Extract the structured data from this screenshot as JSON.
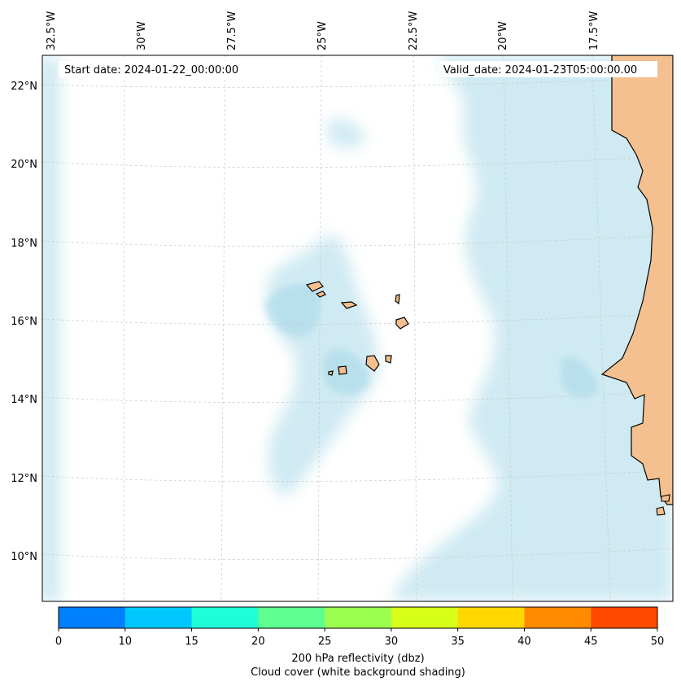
{
  "map": {
    "start_date": "Start date: 2024-01-22_00:00:00",
    "valid_date": "Valid_date: 2024-01-23T05:00:00.00",
    "lon_labels": [
      "32.5°W",
      "30°W",
      "27.5°W",
      "25°W",
      "22.5°W",
      "20°W",
      "17.5°W"
    ],
    "lat_labels": [
      "22°N",
      "20°N",
      "18°N",
      "16°N",
      "14°N",
      "12°N",
      "10°N"
    ],
    "colors": {
      "land": "#f4c08f",
      "cloud": "#a9d9e8",
      "coast": "#000000"
    }
  },
  "colorbar": {
    "ticks": [
      "0",
      "10",
      "15",
      "20",
      "25",
      "30",
      "35",
      "40",
      "45",
      "50"
    ],
    "colors": [
      "#0080ff",
      "#00c8ff",
      "#1effd8",
      "#5cff90",
      "#9cff50",
      "#d8ff1a",
      "#ffd800",
      "#ff8a00",
      "#ff4a00"
    ],
    "label_line1": "200 hPa reflectivity (dbz)",
    "label_line2": "Cloud cover (white background shading)"
  }
}
